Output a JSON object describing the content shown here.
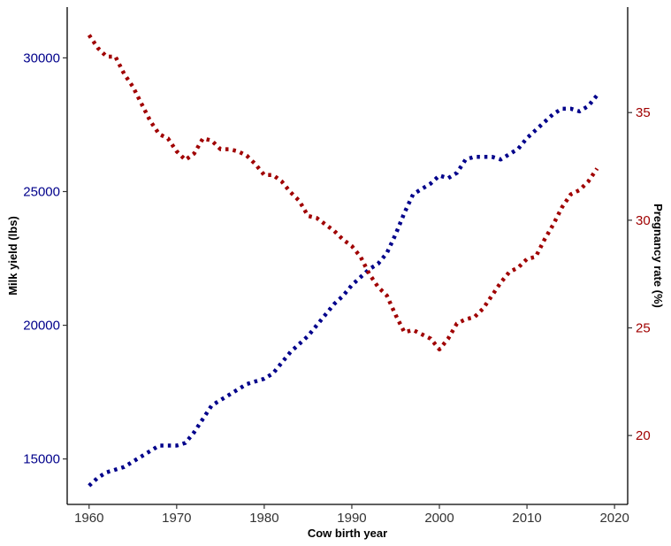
{
  "chart_data": {
    "type": "line",
    "title": "",
    "xlabel": "Cow birth year",
    "ylabel_left": "Milk  yield (lbs)",
    "ylabel_right": "Pregnancy rate (%)",
    "xlim": [
      1957.5,
      2021.5
    ],
    "ylim_left": [
      13300,
      31900
    ],
    "ylim_right": [
      16.8,
      39.9
    ],
    "xticks": [
      1960,
      1970,
      1980,
      1990,
      2000,
      2010,
      2020
    ],
    "yticks_left": [
      15000,
      20000,
      25000,
      30000
    ],
    "yticks_right": [
      20,
      25,
      30,
      35
    ],
    "grid": false,
    "legend": "none",
    "line_style": "dotted",
    "x": [
      1960,
      1961,
      1962,
      1963,
      1964,
      1965,
      1966,
      1967,
      1968,
      1969,
      1970,
      1971,
      1972,
      1973,
      1974,
      1975,
      1976,
      1977,
      1978,
      1979,
      1980,
      1981,
      1982,
      1983,
      1984,
      1985,
      1986,
      1987,
      1988,
      1989,
      1990,
      1991,
      1992,
      1993,
      1994,
      1995,
      1996,
      1997,
      1998,
      1999,
      2000,
      2001,
      2002,
      2003,
      2004,
      2005,
      2006,
      2007,
      2008,
      2009,
      2010,
      2011,
      2012,
      2013,
      2014,
      2015,
      2016,
      2017,
      2018
    ],
    "series": [
      {
        "axis": "left",
        "color": "#00008b",
        "values": [
          14000,
          14300,
          14500,
          14600,
          14700,
          14900,
          15100,
          15300,
          15500,
          15500,
          15500,
          15600,
          16000,
          16500,
          17000,
          17200,
          17400,
          17600,
          17800,
          17900,
          18000,
          18200,
          18600,
          19000,
          19300,
          19600,
          20000,
          20400,
          20800,
          21100,
          21500,
          21800,
          22100,
          22300,
          22700,
          23400,
          24200,
          24900,
          25100,
          25300,
          25600,
          25500,
          25700,
          26200,
          26300,
          26300,
          26300,
          26200,
          26400,
          26600,
          27000,
          27300,
          27600,
          27900,
          28100,
          28100,
          28000,
          28200,
          28600
        ]
      },
      {
        "axis": "right",
        "color": "#a00000",
        "values": [
          38.6,
          38.0,
          37.6,
          37.6,
          36.8,
          36.2,
          35.4,
          34.6,
          34.0,
          33.8,
          33.2,
          32.8,
          33.1,
          33.8,
          33.7,
          33.3,
          33.3,
          33.2,
          33.0,
          32.6,
          32.1,
          32.1,
          31.8,
          31.3,
          30.9,
          30.2,
          30.1,
          29.8,
          29.5,
          29.1,
          28.8,
          28.3,
          27.5,
          26.9,
          26.5,
          25.6,
          24.8,
          24.9,
          24.7,
          24.5,
          24.0,
          24.5,
          25.2,
          25.4,
          25.5,
          25.9,
          26.5,
          27.1,
          27.6,
          27.8,
          28.2,
          28.3,
          29.1,
          29.8,
          30.6,
          31.2,
          31.4,
          31.8,
          32.4
        ]
      }
    ]
  }
}
